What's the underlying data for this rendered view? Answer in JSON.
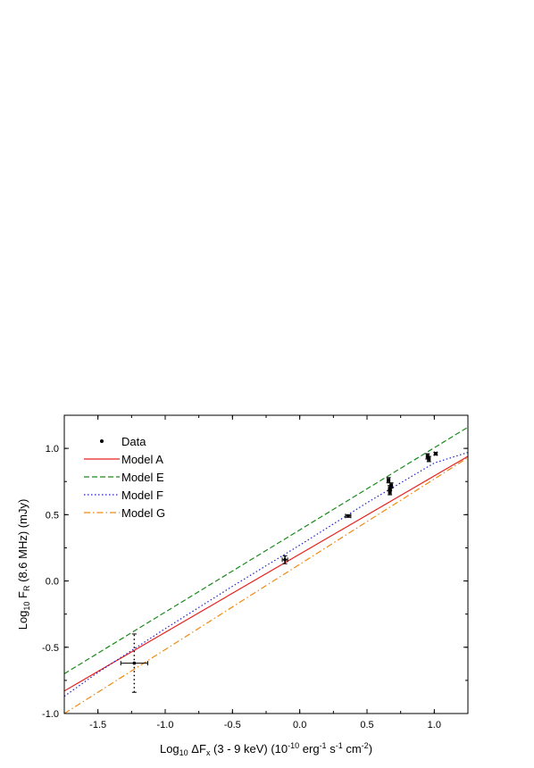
{
  "chart_data": {
    "type": "scatter",
    "xlim": [
      -1.75,
      1.25
    ],
    "ylim": [
      -1.0,
      1.25
    ],
    "x_ticks": [
      -1.5,
      -1.0,
      -0.5,
      0.0,
      0.5,
      1.0
    ],
    "x_tick_labels": [
      "-1.5",
      "-1.0",
      "-0.5",
      "0.0",
      "0.5",
      "1.0"
    ],
    "y_ticks": [
      -1.0,
      -0.5,
      0.0,
      0.5,
      1.0
    ],
    "y_tick_labels": [
      "-1.0",
      "-0.5",
      "0.0",
      "0.5",
      "1.0"
    ],
    "xlabel": {
      "prefix": "Log",
      "prefix_sub": "10",
      "delta": " ΔF",
      "delta_sub": "x",
      "mid": " (3 - 9 keV) (10",
      "exp1": "-10",
      "erg": " erg",
      "exp2": "-1",
      "s": " s",
      "exp3": "-1",
      "cm": " cm",
      "exp4": "-2",
      "close": ")"
    },
    "ylabel": {
      "prefix": "Log",
      "prefix_sub": "10",
      "f": " F",
      "f_sub": "R",
      "rest": " (8.6 MHz) (mJy)"
    },
    "grid": false,
    "legend_position": "top-left",
    "data_series": {
      "name": "Data",
      "color": "#000000",
      "points": [
        {
          "x": -1.23,
          "y": -0.62,
          "xerr": 0.1,
          "yerr": 0.22
        },
        {
          "x": -0.11,
          "y": 0.16,
          "xerr": 0.02,
          "yerr": 0.03
        },
        {
          "x": 0.36,
          "y": 0.49,
          "xerr": 0.02,
          "yerr": 0.01
        },
        {
          "x": 0.66,
          "y": 0.76,
          "xerr": 0.01,
          "yerr": 0.02
        },
        {
          "x": 0.67,
          "y": 0.67,
          "xerr": 0.01,
          "yerr": 0.02
        },
        {
          "x": 0.67,
          "y": 0.7,
          "xerr": 0.01,
          "yerr": 0.02
        },
        {
          "x": 0.68,
          "y": 0.72,
          "xerr": 0.01,
          "yerr": 0.02
        },
        {
          "x": 0.95,
          "y": 0.94,
          "xerr": 0.01,
          "yerr": 0.02
        },
        {
          "x": 0.96,
          "y": 0.92,
          "xerr": 0.01,
          "yerr": 0.02
        },
        {
          "x": 1.01,
          "y": 0.96,
          "xerr": 0.01,
          "yerr": 0.01
        }
      ]
    },
    "series": [
      {
        "name": "Model A",
        "color": "#e8201e",
        "dash": "solid",
        "x": [
          -1.75,
          1.25
        ],
        "y": [
          -0.83,
          0.94
        ]
      },
      {
        "name": "Model E",
        "color": "#1a8a1a",
        "dash": "dashed",
        "x": [
          -1.75,
          1.25
        ],
        "y": [
          -0.7,
          1.16
        ]
      },
      {
        "name": "Model F",
        "color": "#2020c8",
        "dash": "dotted",
        "x": [
          -1.75,
          -1.5,
          -1.0,
          -0.5,
          0.0,
          0.5,
          1.0,
          1.25
        ],
        "y": [
          -0.87,
          -0.69,
          -0.36,
          -0.04,
          0.27,
          0.59,
          0.89,
          0.97
        ]
      },
      {
        "name": "Model G",
        "color": "#f08a10",
        "dash": "dashdot",
        "x": [
          -1.75,
          1.25
        ],
        "y": [
          -1.0,
          0.93
        ]
      }
    ]
  }
}
